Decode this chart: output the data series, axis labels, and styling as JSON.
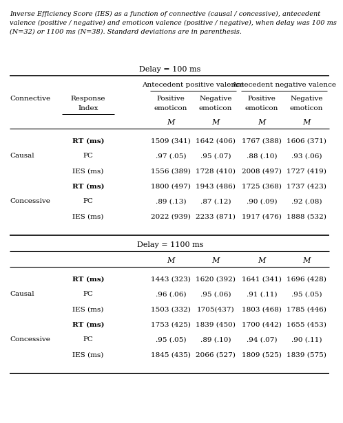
{
  "caption_line1": "Inverse Efficiency Score (IES) as a function of connective (causal / concessive), antecedent",
  "caption_line2": "valence (positive / negative) and emoticon valence (positive / negative), when delay was 100 ms",
  "caption_line3": "(N=32) or 1100 ms (N=38). Standard deviations are in parenthesis.",
  "delay100_header": "Delay = 100 ms",
  "delay1100_header": "Delay = 1100 ms",
  "col_header1": "Antecedent positive valence",
  "col_header2": "Antecedent negative valence",
  "sub_headers": [
    "Positive",
    "Negative",
    "Positive",
    "Negative"
  ],
  "sub_headers2": [
    "emoticon",
    "emoticon",
    "emoticon",
    "emoticon"
  ],
  "data_100": [
    [
      "1509 (341)",
      "1642 (406)",
      "1767 (388)",
      "1606 (371)"
    ],
    [
      ".97 (.05)",
      ".95 (.07)",
      ".88 (.10)",
      ".93 (.06)"
    ],
    [
      "1556 (389)",
      "1728 (410)",
      "2008 (497)",
      "1727 (419)"
    ],
    [
      "1800 (497)",
      "1943 (486)",
      "1725 (368)",
      "1737 (423)"
    ],
    [
      ".89 (.13)",
      ".87 (.12)",
      ".90 (.09)",
      ".92 (.08)"
    ],
    [
      "2022 (939)",
      "2233 (871)",
      "1917 (476)",
      "1888 (532)"
    ]
  ],
  "data_1100": [
    [
      "1443 (323)",
      "1620 (392)",
      "1641 (341)",
      "1696 (428)"
    ],
    [
      ".96 (.06)",
      ".95 (.06)",
      ".91 (.11)",
      ".95 (.05)"
    ],
    [
      "1503 (332)",
      "1705(437)",
      "1803 (468)",
      "1785 (446)"
    ],
    [
      "1753 (425)",
      "1839 (450)",
      "1700 (442)",
      "1655 (453)"
    ],
    [
      ".95 (.05)",
      ".89 (.10)",
      ".94 (.07)",
      ".90 (.11)"
    ],
    [
      "1845 (435)",
      "2066 (527)",
      "1809 (525)",
      "1839 (575)"
    ]
  ],
  "connective_labels_100": [
    "Causal",
    "Concessive"
  ],
  "connective_labels_1100": [
    "Causal",
    "Concessive"
  ],
  "row_labels": [
    "RT (ms)",
    "PC",
    "IES (ms)",
    "RT (ms)",
    "PC",
    "IES (ms)"
  ]
}
